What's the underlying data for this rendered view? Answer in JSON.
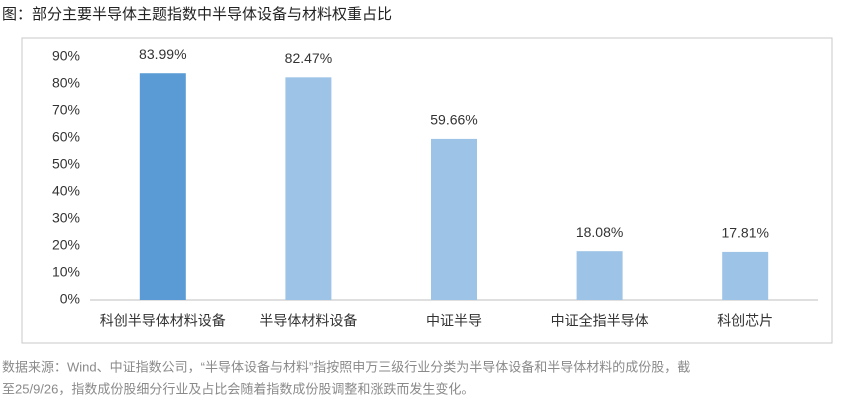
{
  "chart_data": {
    "type": "bar",
    "title": "图：部分主要半导体主题指数中半导体设备与材料权重占比",
    "categories": [
      "科创半导体材料设备",
      "半导体材料设备",
      "中证半导",
      "中证全指半导体",
      "科创芯片"
    ],
    "values": [
      83.99,
      82.47,
      59.66,
      18.08,
      17.81
    ],
    "value_labels": [
      "83.99%",
      "82.47%",
      "59.66%",
      "18.08%",
      "17.81%"
    ],
    "colors": [
      "#5b9bd5",
      "#9dc3e6",
      "#9dc3e6",
      "#9dc3e6",
      "#9dc3e6"
    ],
    "ylim": [
      0,
      90
    ],
    "yticks": [
      {
        "value": 0,
        "label": "0%"
      },
      {
        "value": 10,
        "label": "10%"
      },
      {
        "value": 20,
        "label": "20%"
      },
      {
        "value": 30,
        "label": "30%"
      },
      {
        "value": 40,
        "label": "40%"
      },
      {
        "value": 50,
        "label": "50%"
      },
      {
        "value": 60,
        "label": "60%"
      },
      {
        "value": 70,
        "label": "70%"
      },
      {
        "value": 80,
        "label": "80%"
      },
      {
        "value": 90,
        "label": "90%"
      }
    ],
    "grid": false,
    "footnote": [
      "数据来源：Wind、中证指数公司，“半导体设备与材料”指按照申万三级行业分类为半导体设备和半导体材料的成份股，截",
      "至25/9/26，指数成份股细分行业及占比会随着指数成份股调整和涨跌而发生变化。"
    ]
  }
}
